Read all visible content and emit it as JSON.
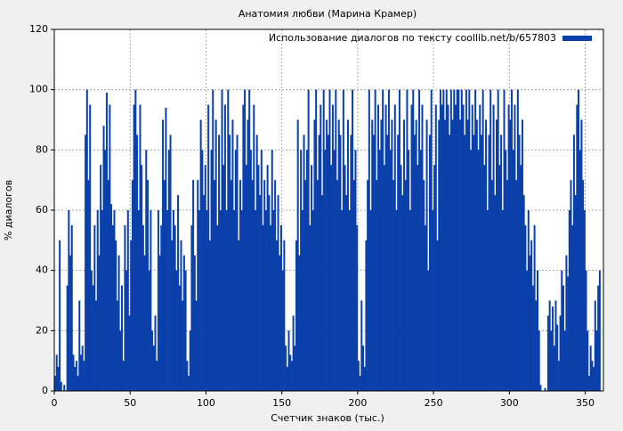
{
  "chart_data": {
    "type": "bar",
    "title": "Анатомия любви (Марина Крамер)",
    "xlabel": "Счетчик знаков (тыс.)",
    "ylabel": "% диалогов",
    "legend": "upper right",
    "grid": true,
    "series": [
      {
        "name": "Использование диалогов по тексту coollib.net/b/657803",
        "color": "#0b40ab"
      }
    ],
    "xlim": [
      0,
      362
    ],
    "ylim": [
      0,
      120
    ],
    "xticks": [
      0,
      50,
      100,
      150,
      200,
      250,
      300,
      350
    ],
    "yticks": [
      0,
      20,
      40,
      60,
      80,
      100,
      120
    ],
    "x": [
      1,
      2,
      3,
      4,
      5,
      6,
      7,
      8,
      9,
      10,
      11,
      12,
      13,
      14,
      15,
      16,
      17,
      18,
      19,
      20,
      21,
      22,
      23,
      24,
      25,
      26,
      27,
      28,
      29,
      30,
      31,
      32,
      33,
      34,
      35,
      36,
      37,
      38,
      39,
      40,
      41,
      42,
      43,
      44,
      45,
      46,
      47,
      48,
      49,
      50,
      51,
      52,
      53,
      54,
      55,
      56,
      57,
      58,
      59,
      60,
      61,
      62,
      63,
      64,
      65,
      66,
      67,
      68,
      69,
      70,
      71,
      72,
      73,
      74,
      75,
      76,
      77,
      78,
      79,
      80,
      81,
      82,
      83,
      84,
      85,
      86,
      87,
      88,
      89,
      90,
      91,
      92,
      93,
      94,
      95,
      96,
      97,
      98,
      99,
      100,
      101,
      102,
      103,
      104,
      105,
      106,
      107,
      108,
      109,
      110,
      111,
      112,
      113,
      114,
      115,
      116,
      117,
      118,
      119,
      120,
      121,
      122,
      123,
      124,
      125,
      126,
      127,
      128,
      129,
      130,
      131,
      132,
      133,
      134,
      135,
      136,
      137,
      138,
      139,
      140,
      141,
      142,
      143,
      144,
      145,
      146,
      147,
      148,
      149,
      150,
      151,
      152,
      153,
      154,
      155,
      156,
      157,
      158,
      159,
      160,
      161,
      162,
      163,
      164,
      165,
      166,
      167,
      168,
      169,
      170,
      171,
      172,
      173,
      174,
      175,
      176,
      177,
      178,
      179,
      180,
      181,
      182,
      183,
      184,
      185,
      186,
      187,
      188,
      189,
      190,
      191,
      192,
      193,
      194,
      195,
      196,
      197,
      198,
      199,
      200,
      201,
      202,
      203,
      204,
      205,
      206,
      207,
      208,
      209,
      210,
      211,
      212,
      213,
      214,
      215,
      216,
      217,
      218,
      219,
      220,
      221,
      222,
      223,
      224,
      225,
      226,
      227,
      228,
      229,
      230,
      231,
      232,
      233,
      234,
      235,
      236,
      237,
      238,
      239,
      240,
      241,
      242,
      243,
      244,
      245,
      246,
      247,
      248,
      249,
      250,
      251,
      252,
      253,
      254,
      255,
      256,
      257,
      258,
      259,
      260,
      261,
      262,
      263,
      264,
      265,
      266,
      267,
      268,
      269,
      270,
      271,
      272,
      273,
      274,
      275,
      276,
      277,
      278,
      279,
      280,
      281,
      282,
      283,
      284,
      285,
      286,
      287,
      288,
      289,
      290,
      291,
      292,
      293,
      294,
      295,
      296,
      297,
      298,
      299,
      300,
      301,
      302,
      303,
      304,
      305,
      306,
      307,
      308,
      309,
      310,
      311,
      312,
      313,
      314,
      315,
      316,
      317,
      318,
      319,
      320,
      321,
      322,
      323,
      324,
      325,
      326,
      327,
      328,
      329,
      330,
      331,
      332,
      333,
      334,
      335,
      336,
      337,
      338,
      339,
      340,
      341,
      342,
      343,
      344,
      345,
      346,
      347,
      348,
      349,
      350,
      351,
      352,
      353,
      354,
      355,
      356,
      357,
      358,
      359,
      360
    ],
    "values": [
      5,
      12,
      8,
      50,
      3,
      0,
      2,
      0,
      35,
      60,
      45,
      55,
      12,
      8,
      10,
      5,
      30,
      12,
      15,
      10,
      85,
      100,
      70,
      95,
      40,
      35,
      55,
      30,
      60,
      45,
      75,
      60,
      88,
      80,
      99,
      70,
      95,
      62,
      55,
      60,
      50,
      30,
      45,
      20,
      35,
      10,
      55,
      40,
      60,
      25,
      50,
      70,
      95,
      100,
      85,
      60,
      95,
      75,
      55,
      45,
      80,
      70,
      40,
      60,
      20,
      15,
      25,
      10,
      60,
      45,
      55,
      90,
      70,
      94,
      60,
      80,
      85,
      50,
      60,
      55,
      40,
      65,
      35,
      50,
      30,
      45,
      40,
      10,
      5,
      20,
      55,
      70,
      45,
      30,
      70,
      60,
      90,
      80,
      65,
      75,
      60,
      95,
      50,
      80,
      100,
      70,
      90,
      55,
      85,
      60,
      100,
      75,
      95,
      60,
      100,
      85,
      70,
      90,
      60,
      80,
      85,
      50,
      70,
      60,
      95,
      100,
      75,
      90,
      100,
      80,
      70,
      95,
      60,
      85,
      75,
      65,
      80,
      55,
      70,
      60,
      75,
      65,
      55,
      80,
      60,
      70,
      50,
      65,
      45,
      55,
      40,
      50,
      15,
      8,
      20,
      12,
      10,
      25,
      15,
      50,
      90,
      45,
      80,
      60,
      85,
      70,
      80,
      100,
      55,
      75,
      60,
      90,
      100,
      70,
      85,
      95,
      65,
      100,
      80,
      90,
      85,
      100,
      75,
      95,
      80,
      100,
      70,
      90,
      85,
      60,
      100,
      75,
      65,
      90,
      60,
      85,
      100,
      70,
      80,
      55,
      10,
      5,
      30,
      15,
      8,
      50,
      70,
      100,
      60,
      90,
      85,
      100,
      70,
      95,
      80,
      90,
      100,
      75,
      95,
      85,
      100,
      80,
      90,
      70,
      95,
      60,
      85,
      100,
      75,
      65,
      90,
      70,
      100,
      80,
      60,
      95,
      100,
      85,
      90,
      75,
      100,
      80,
      95,
      70,
      55,
      90,
      40,
      85,
      100,
      60,
      75,
      95,
      50,
      90,
      100,
      95,
      100,
      90,
      100,
      95,
      85,
      100,
      90,
      100,
      95,
      100,
      100,
      90,
      100,
      95,
      85,
      100,
      90,
      100,
      80,
      95,
      85,
      100,
      90,
      80,
      95,
      85,
      100,
      75,
      90,
      60,
      85,
      100,
      70,
      95,
      65,
      90,
      100,
      75,
      85,
      60,
      100,
      80,
      70,
      95,
      90,
      100,
      80,
      95,
      70,
      100,
      85,
      75,
      90,
      65,
      55,
      40,
      60,
      45,
      50,
      35,
      55,
      30,
      40,
      20,
      2,
      0,
      0,
      1,
      0,
      25,
      30,
      20,
      28,
      15,
      30,
      22,
      10,
      25,
      40,
      35,
      20,
      45,
      38,
      60,
      70,
      55,
      85,
      65,
      95,
      100,
      80,
      90,
      70,
      60,
      40,
      20,
      5,
      15,
      10,
      8,
      30,
      20,
      35,
      40
    ]
  }
}
